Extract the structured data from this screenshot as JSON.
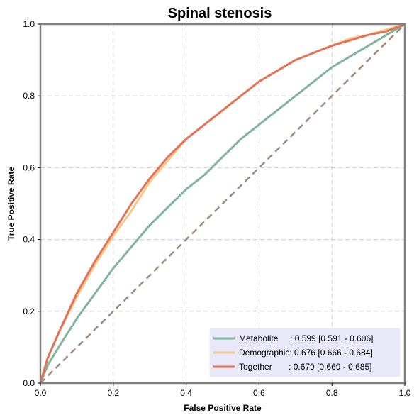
{
  "chart_data": {
    "type": "line",
    "title": "Spinal stenosis",
    "xlabel": "False Positive Rate",
    "ylabel": "True Positive Rate",
    "xlim": [
      0,
      1
    ],
    "ylim": [
      0,
      1
    ],
    "xticks": [
      "0.0",
      "0.2",
      "0.4",
      "0.6",
      "0.8",
      "1.0"
    ],
    "yticks": [
      "0.0",
      "0.2",
      "0.4",
      "0.6",
      "0.8",
      "1.0"
    ],
    "grid": true,
    "legend_position": "bottom-right",
    "x": [
      0,
      0.02,
      0.05,
      0.1,
      0.15,
      0.2,
      0.25,
      0.3,
      0.35,
      0.4,
      0.45,
      0.5,
      0.55,
      0.6,
      0.65,
      0.7,
      0.75,
      0.8,
      0.85,
      0.9,
      0.95,
      1.0
    ],
    "series": [
      {
        "name": "Metabolite",
        "label": "Metabolite     : 0.599 [0.591 - 0.606]",
        "color": "#7fb59b",
        "values": [
          0,
          0.05,
          0.1,
          0.18,
          0.25,
          0.32,
          0.38,
          0.44,
          0.49,
          0.54,
          0.58,
          0.63,
          0.68,
          0.72,
          0.76,
          0.8,
          0.84,
          0.88,
          0.91,
          0.94,
          0.97,
          1.0
        ]
      },
      {
        "name": "Demographic",
        "label": "Demographic: 0.676 [0.666 - 0.684]",
        "color": "#f5c98a",
        "values": [
          0,
          0.07,
          0.14,
          0.24,
          0.33,
          0.41,
          0.48,
          0.56,
          0.62,
          0.68,
          0.72,
          0.76,
          0.8,
          0.84,
          0.87,
          0.9,
          0.92,
          0.94,
          0.96,
          0.97,
          0.985,
          1.0
        ]
      },
      {
        "name": "Together",
        "label": "Together       : 0.679 [0.669 - 0.685]",
        "color": "#e27258",
        "values": [
          0,
          0.07,
          0.14,
          0.25,
          0.34,
          0.42,
          0.5,
          0.57,
          0.63,
          0.68,
          0.72,
          0.76,
          0.8,
          0.84,
          0.87,
          0.9,
          0.92,
          0.94,
          0.955,
          0.97,
          0.98,
          1.0
        ]
      }
    ],
    "diagonal": {
      "color": "#a48a7a",
      "style": "dashed"
    },
    "legend_bg": "#e8e8f8"
  }
}
